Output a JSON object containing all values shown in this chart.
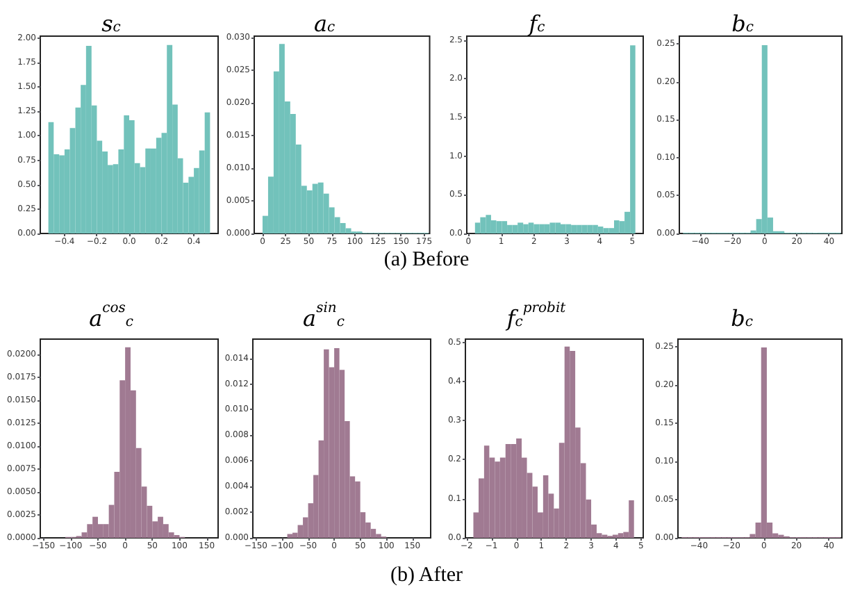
{
  "chart_data": [
    {
      "type": "histogram",
      "title": "s$_{c}$",
      "annotations": [
        "(a) Before"
      ],
      "color": "#72c2bb",
      "bins": [
        -0.5,
        -0.467,
        -0.433,
        -0.4,
        -0.367,
        -0.333,
        -0.3,
        -0.267,
        -0.233,
        -0.2,
        -0.167,
        -0.133,
        -0.1,
        -0.067,
        -0.033,
        0,
        0.033,
        0.067,
        0.1,
        0.133,
        0.167,
        0.2,
        0.233,
        0.267,
        0.3,
        0.333,
        0.367,
        0.4,
        0.433,
        0.467,
        0.5
      ],
      "values": [
        1.14,
        0.81,
        0.8,
        0.86,
        1.08,
        1.29,
        1.52,
        1.92,
        1.31,
        0.95,
        0.84,
        0.7,
        0.71,
        0.86,
        1.21,
        1.16,
        0.72,
        0.68,
        0.87,
        0.87,
        0.98,
        1.03,
        1.93,
        1.32,
        0.77,
        0.52,
        0.58,
        0.67,
        0.85,
        1.24
      ],
      "xlim": [
        -0.55,
        0.55
      ],
      "xticks": [
        {
          "value": -0.4,
          "label": "−0.4"
        },
        {
          "value": -0.2,
          "label": "−0.2"
        },
        {
          "value": 0,
          "label": "0.0"
        },
        0.2,
        0.4
      ],
      "ylim": [
        0,
        2.02
      ],
      "yticks": [
        {
          "value": 0,
          "label": "0.00"
        },
        {
          "value": 0.25,
          "label": "0.25"
        },
        {
          "value": 0.5,
          "label": "0.50"
        },
        {
          "value": 0.75,
          "label": "0.75"
        },
        {
          "value": 1,
          "label": "1.00"
        },
        {
          "value": 1.25,
          "label": "1.25"
        },
        {
          "value": 1.5,
          "label": "1.50"
        },
        {
          "value": 1.75,
          "label": "1.75"
        },
        {
          "value": 2,
          "label": "2.00"
        }
      ]
    },
    {
      "type": "histogram",
      "title": "a$_{c}$",
      "color": "#72c2bb",
      "bins": [
        0,
        6,
        12,
        18,
        24,
        30,
        36,
        42,
        48,
        54,
        60,
        66,
        72,
        78,
        84,
        90,
        96,
        102,
        108,
        114,
        120,
        126,
        132,
        138,
        144,
        150,
        156,
        162,
        168,
        174,
        180
      ],
      "values": [
        0.0027,
        0.0087,
        0.0248,
        0.029,
        0.0202,
        0.0183,
        0.0136,
        0.0073,
        0.0066,
        0.0076,
        0.0078,
        0.0061,
        0.004,
        0.0025,
        0.0016,
        0.0008,
        0.0003,
        0.0003,
        0.0001,
        0.0001,
        0.0001,
        0.0001,
        0.0001,
        0.0001,
        0.0001,
        0.0001,
        0.0001,
        0.0001,
        0.0001,
        0.0001
      ],
      "xlim": [
        -9,
        181
      ],
      "xticks": [
        0,
        25,
        50,
        75,
        100,
        125,
        150,
        175
      ],
      "ylim": [
        0,
        0.0302
      ],
      "yticks": [
        {
          "value": 0,
          "label": "0.000"
        },
        {
          "value": 0.005,
          "label": "0.005"
        },
        {
          "value": 0.01,
          "label": "0.010"
        },
        {
          "value": 0.015,
          "label": "0.015"
        },
        {
          "value": 0.02,
          "label": "0.020"
        },
        {
          "value": 0.025,
          "label": "0.025"
        },
        {
          "value": 0.03,
          "label": "0.030"
        }
      ]
    },
    {
      "type": "histogram",
      "title": "f$_{c}$",
      "color": "#72c2bb",
      "bins": [
        0.2,
        0.36,
        0.53,
        0.69,
        0.85,
        1.02,
        1.18,
        1.34,
        1.5,
        1.67,
        1.83,
        1.99,
        2.16,
        2.32,
        2.48,
        2.65,
        2.81,
        2.97,
        3.13,
        3.3,
        3.46,
        3.62,
        3.79,
        3.95,
        4.11,
        4.28,
        4.44,
        4.6,
        4.76,
        4.93,
        5.09
      ],
      "values": [
        0.14,
        0.21,
        0.24,
        0.17,
        0.16,
        0.16,
        0.11,
        0.11,
        0.14,
        0.12,
        0.14,
        0.12,
        0.12,
        0.12,
        0.14,
        0.14,
        0.12,
        0.12,
        0.11,
        0.11,
        0.11,
        0.11,
        0.11,
        0.09,
        0.07,
        0.07,
        0.17,
        0.16,
        0.28,
        2.43
      ],
      "xlim": [
        -0.05,
        5.33
      ],
      "xticks": [
        0,
        1,
        2,
        3,
        4,
        5
      ],
      "ylim": [
        0,
        2.55
      ],
      "yticks": [
        {
          "value": 0,
          "label": "0.0"
        },
        0.5,
        {
          "value": 1,
          "label": "1.0"
        },
        1.5,
        {
          "value": 2,
          "label": "2.0"
        },
        2.5
      ]
    },
    {
      "type": "histogram",
      "title": "b$_{c}$",
      "color": "#72c2bb",
      "bins": [
        -50.75,
        -47.25,
        -43.75,
        -40.25,
        -36.75,
        -33.25,
        -29.75,
        -26.25,
        -22.75,
        -19.25,
        -15.75,
        -12.25,
        -8.75,
        -5.25,
        -1.75,
        1.75,
        5.25,
        8.75,
        12.25,
        15.75,
        19.25,
        22.75,
        26.25,
        29.75,
        33.25,
        36.75,
        40.25,
        43.75,
        47.25
      ],
      "values": [
        0.001,
        0.001,
        0.001,
        0.001,
        0.001,
        0.001,
        0.001,
        0.001,
        0.001,
        0.001,
        0.001,
        0.001,
        0.004,
        0.019,
        0.248,
        0.021,
        0.003,
        0.003,
        0.001,
        0.001,
        0.001,
        0.001,
        0.001,
        0.001,
        0.001,
        0.001,
        0.001,
        0.001
      ],
      "xlim": [
        -53,
        48
      ],
      "xticks": [
        {
          "value": -40,
          "label": "−40"
        },
        {
          "value": -20,
          "label": "−20"
        },
        0,
        20,
        40
      ],
      "ylim": [
        0,
        0.26
      ],
      "yticks": [
        {
          "value": 0,
          "label": "0.00"
        },
        0.05,
        {
          "value": 0.1,
          "label": "0.10"
        },
        0.15,
        {
          "value": 0.2,
          "label": "0.20"
        },
        0.25
      ]
    },
    {
      "type": "histogram",
      "title": "a$^{cos}$$_{c}$",
      "annotations": [
        "(b) After"
      ],
      "color": "#a07a92",
      "bins": [
        -110,
        -100,
        -90,
        -80,
        -70,
        -60,
        -50,
        -40,
        -30,
        -20,
        -10,
        0,
        10,
        20,
        30,
        40,
        50,
        60,
        70,
        80,
        90,
        100,
        110
      ],
      "values": [
        0.0001,
        0.0001,
        0.0002,
        0.0006,
        0.0015,
        0.0023,
        0.0015,
        0.0015,
        0.0036,
        0.0072,
        0.0172,
        0.0208,
        0.0161,
        0.0098,
        0.0056,
        0.0035,
        0.0018,
        0.0023,
        0.0015,
        0.0006,
        0.0003,
        0.0001
      ],
      "xlim": [
        -156,
        171
      ],
      "xticks": [
        {
          "value": -150,
          "label": "−150"
        },
        {
          "value": -100,
          "label": "−100"
        },
        {
          "value": -50,
          "label": "−50"
        },
        0,
        50,
        100,
        150
      ],
      "ylim": [
        0,
        0.0217
      ],
      "yticks": [
        {
          "value": 0,
          "label": "0.0000"
        },
        {
          "value": 0.0025,
          "label": "0.0025"
        },
        {
          "value": 0.005,
          "label": "0.0050"
        },
        {
          "value": 0.0075,
          "label": "0.0075"
        },
        {
          "value": 0.01,
          "label": "0.0100"
        },
        {
          "value": 0.0125,
          "label": "0.0125"
        },
        {
          "value": 0.015,
          "label": "0.0150"
        },
        {
          "value": 0.0175,
          "label": "0.0175"
        },
        {
          "value": 0.02,
          "label": "0.0200"
        }
      ]
    },
    {
      "type": "histogram",
      "title": "a$^{sin}$$_{c}$",
      "color": "#a07a92",
      "bins": [
        -90,
        -80,
        -70,
        -60,
        -50,
        -40,
        -30,
        -20,
        -10,
        0,
        10,
        20,
        30,
        40,
        50,
        60,
        70,
        80,
        90,
        100
      ],
      "values": [
        0.0003,
        0.0004,
        0.001,
        0.0016,
        0.0027,
        0.0049,
        0.0076,
        0.0147,
        0.0133,
        0.0148,
        0.0131,
        0.0091,
        0.0048,
        0.0044,
        0.002,
        0.0012,
        0.0007,
        0.0003,
        0.0001
      ],
      "xlim": [
        -156,
        185
      ],
      "xticks": [
        {
          "value": -150,
          "label": "−150"
        },
        {
          "value": -100,
          "label": "−100"
        },
        {
          "value": -50,
          "label": "−50"
        },
        0,
        50,
        100,
        150
      ],
      "ylim": [
        0,
        0.0155
      ],
      "yticks": [
        {
          "value": 0,
          "label": "0.000"
        },
        0.002,
        0.004,
        0.006,
        0.008,
        {
          "value": 0.01,
          "label": "0.010"
        },
        0.012,
        0.014
      ]
    },
    {
      "type": "histogram",
      "title": "f$_{c}$$^{probit}$",
      "color": "#a07a92",
      "bins": [
        -1.73,
        -1.52,
        -1.3,
        -1.09,
        -0.87,
        -0.66,
        -0.44,
        -0.23,
        -0.01,
        0.21,
        0.42,
        0.64,
        0.85,
        1.07,
        1.28,
        1.5,
        1.71,
        1.93,
        2.14,
        2.36,
        2.57,
        2.79,
        3,
        3.22,
        3.43,
        3.65,
        3.86,
        4.08,
        4.29,
        4.51,
        4.72
      ],
      "values": [
        0.065,
        0.152,
        0.236,
        0.205,
        0.195,
        0.205,
        0.24,
        0.24,
        0.254,
        0.205,
        0.166,
        0.131,
        0.065,
        0.16,
        0.113,
        0.075,
        0.243,
        0.489,
        0.478,
        0.282,
        0.191,
        0.098,
        0.034,
        0.012,
        0.008,
        0.005,
        0.008,
        0.012,
        0.015,
        0.096
      ],
      "xlim": [
        -2.05,
        5.09
      ],
      "xticks": [
        {
          "value": -2,
          "label": "−2"
        },
        {
          "value": -1,
          "label": "−1"
        },
        0,
        1,
        2,
        3,
        4,
        5
      ],
      "ylim": [
        0,
        0.508
      ],
      "yticks": [
        {
          "value": 0,
          "label": "0.0"
        },
        0.1,
        0.2,
        0.3,
        0.4,
        0.5
      ]
    },
    {
      "type": "histogram",
      "title": "b$_{c}$",
      "color": "#a07a92",
      "bins": [
        -50.75,
        -47.25,
        -43.75,
        -40.25,
        -36.75,
        -33.25,
        -29.75,
        -26.25,
        -22.75,
        -19.25,
        -15.75,
        -12.25,
        -8.75,
        -5.25,
        -1.75,
        1.75,
        5.25,
        8.75,
        12.25,
        15.75,
        19.25,
        22.75,
        26.25,
        29.75,
        33.25,
        36.75,
        40.25,
        43.75,
        47.25
      ],
      "values": [
        0.001,
        0.001,
        0.001,
        0.001,
        0.001,
        0.001,
        0.001,
        0.001,
        0.001,
        0.001,
        0.001,
        0.001,
        0.005,
        0.02,
        0.249,
        0.02,
        0.006,
        0.004,
        0.002,
        0.001,
        0.001,
        0.001,
        0.001,
        0.001,
        0.001,
        0.001,
        0.001,
        0.001
      ],
      "xlim": [
        -53,
        48
      ],
      "xticks": [
        {
          "value": -40,
          "label": "−40"
        },
        {
          "value": -20,
          "label": "−20"
        },
        0,
        20,
        40
      ],
      "ylim": [
        0,
        0.26
      ],
      "yticks": [
        {
          "value": 0,
          "label": "0.00"
        },
        0.05,
        {
          "value": 0.1,
          "label": "0.10"
        },
        0.15,
        {
          "value": 0.2,
          "label": "0.20"
        },
        0.25
      ]
    }
  ]
}
